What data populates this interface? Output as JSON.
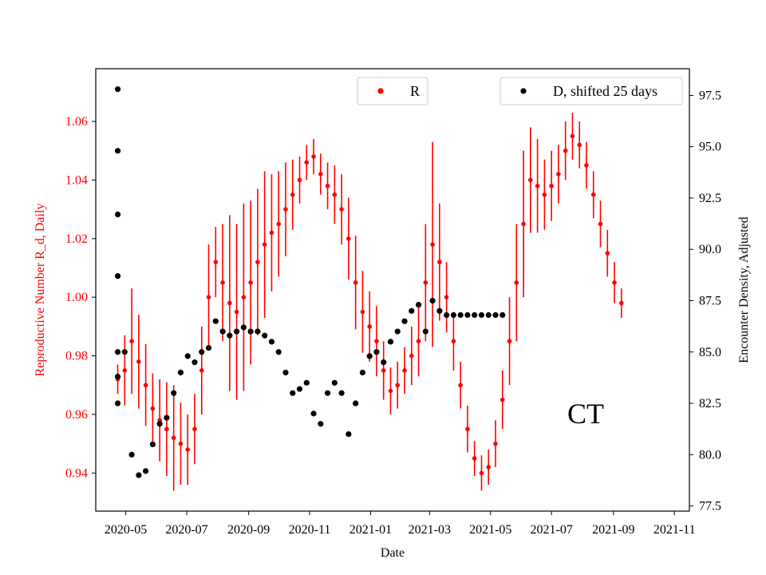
{
  "chart_data": {
    "type": "line",
    "annotation": "CT",
    "xlabel": "Date",
    "x_ticks": [
      "2020-05",
      "2020-07",
      "2020-09",
      "2020-11",
      "2021-01",
      "2021-03",
      "2021-05",
      "2021-07",
      "2021-09",
      "2021-11"
    ],
    "x_range": [
      "2020-04-01",
      "2021-11-16"
    ],
    "left_axis": {
      "label": "Reproductive Number R_d, Daily",
      "color": "#ff0000",
      "ylim": [
        0.927,
        1.078
      ],
      "ticks": [
        "0.94",
        "0.96",
        "0.98",
        "1.00",
        "1.02",
        "1.04",
        "1.06"
      ]
    },
    "right_axis": {
      "label": "Encounter Density, Adjusted",
      "color": "#000000",
      "ylim": [
        77.25,
        98.8
      ],
      "ticks": [
        "77.5",
        "80.0",
        "82.5",
        "85.0",
        "87.5",
        "90.0",
        "92.5",
        "95.0",
        "97.5"
      ]
    },
    "series": [
      {
        "name": "R",
        "color": "#ff0000",
        "axis": "left",
        "start_date": "2020-04-23",
        "step_days": 7,
        "values": [
          0.972,
          0.975,
          0.985,
          0.978,
          0.97,
          0.962,
          0.958,
          0.955,
          0.952,
          0.95,
          0.948,
          0.955,
          0.975,
          1.0,
          1.012,
          1.005,
          0.998,
          0.995,
          1.0,
          1.005,
          1.012,
          1.018,
          1.022,
          1.025,
          1.03,
          1.035,
          1.04,
          1.046,
          1.048,
          1.042,
          1.038,
          1.035,
          1.03,
          1.02,
          1.005,
          0.995,
          0.99,
          0.985,
          0.975,
          0.968,
          0.97,
          0.975,
          0.98,
          0.985,
          1.005,
          1.018,
          1.012,
          1.0,
          0.985,
          0.97,
          0.955,
          0.945,
          0.94,
          0.942,
          0.95,
          0.965,
          0.985,
          1.005,
          1.025,
          1.04,
          1.038,
          1.035,
          1.038,
          1.042,
          1.05,
          1.055,
          1.052,
          1.045,
          1.035,
          1.025,
          1.015,
          1.005,
          0.998
        ],
        "errors": [
          0.005,
          0.012,
          0.018,
          0.016,
          0.014,
          0.012,
          0.014,
          0.016,
          0.018,
          0.014,
          0.012,
          0.012,
          0.015,
          0.018,
          0.012,
          0.02,
          0.03,
          0.03,
          0.032,
          0.028,
          0.025,
          0.025,
          0.02,
          0.018,
          0.016,
          0.012,
          0.008,
          0.006,
          0.006,
          0.007,
          0.008,
          0.01,
          0.012,
          0.014,
          0.016,
          0.014,
          0.012,
          0.012,
          0.01,
          0.008,
          0.008,
          0.008,
          0.01,
          0.012,
          0.02,
          0.035,
          0.02,
          0.012,
          0.01,
          0.008,
          0.008,
          0.006,
          0.006,
          0.006,
          0.008,
          0.01,
          0.015,
          0.02,
          0.025,
          0.018,
          0.016,
          0.012,
          0.012,
          0.01,
          0.01,
          0.008,
          0.008,
          0.008,
          0.008,
          0.008,
          0.008,
          0.007,
          0.005
        ]
      },
      {
        "name": "D, shifted 25 days",
        "color": "#000000",
        "axis": "right",
        "start_date": "2020-04-23",
        "step_days": 7,
        "values": [
          83.8,
          85.0,
          80.0,
          79.0,
          79.2,
          80.5,
          81.5,
          81.8,
          83.0,
          84.0,
          84.8,
          84.5,
          85.0,
          85.2,
          86.5,
          86.0,
          85.8,
          86.0,
          86.2,
          86.0,
          86.0,
          85.8,
          85.5,
          85.0,
          84.0,
          83.0,
          83.2,
          83.5,
          82.0,
          81.5,
          83.0,
          83.5,
          83.0,
          81.0,
          82.5,
          84.0,
          84.8,
          85.0,
          84.5,
          85.5,
          86.0,
          86.5,
          87.0,
          87.3,
          86.0,
          87.5,
          87.0,
          86.8,
          86.8,
          86.8,
          86.8,
          86.8,
          86.8,
          86.8,
          86.8,
          86.8
        ],
        "early_points": [
          97.8,
          94.8,
          91.7,
          88.7,
          85.0,
          82.5
        ]
      }
    ],
    "legend": [
      {
        "label": "R",
        "color": "#ff0000",
        "placement": "top-center"
      },
      {
        "label": "D, shifted 25 days",
        "color": "#000000",
        "placement": "top-right"
      }
    ]
  }
}
